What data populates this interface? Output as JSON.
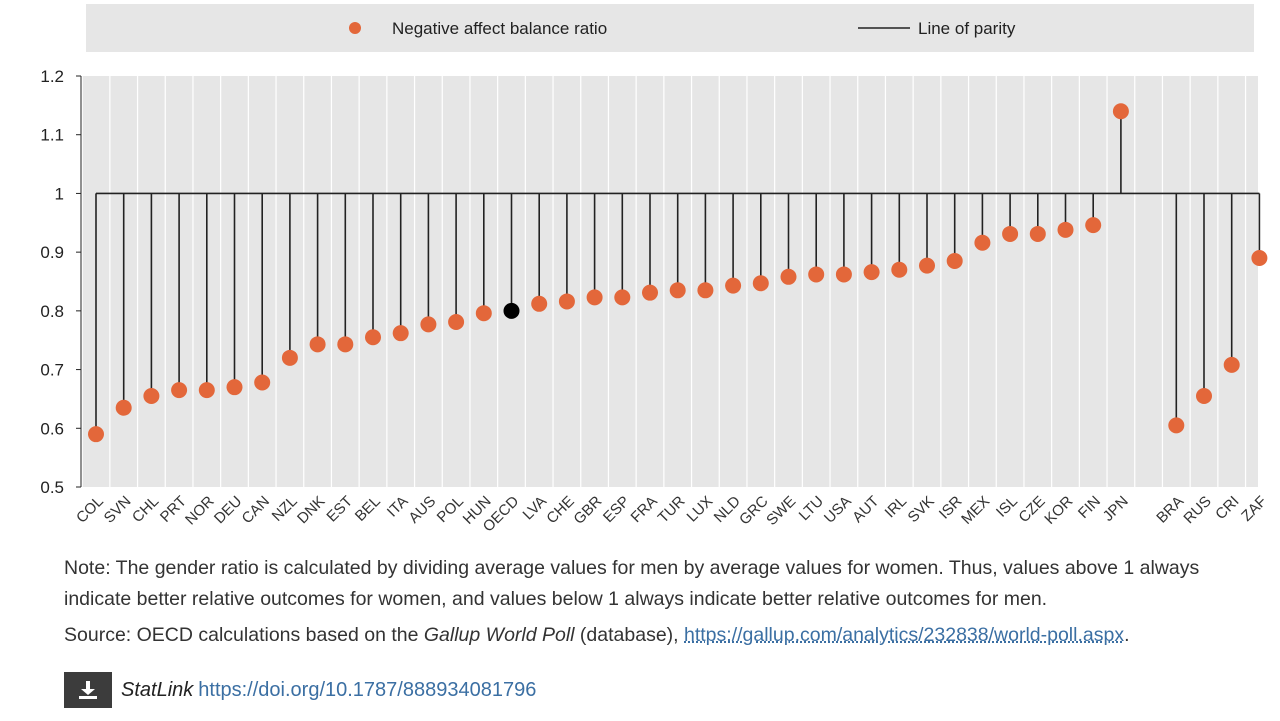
{
  "legend": {
    "series_label": "Negative affect balance ratio",
    "line_label": "Line of parity"
  },
  "colors": {
    "dot": "#e3673a",
    "oecd_dot": "#000000",
    "line": "#222222",
    "plot_bg": "#e6e6e6",
    "legend_bg": "#e6e6e6",
    "link": "#3b6fa3"
  },
  "chart_data": {
    "type": "scatter",
    "title": "",
    "xlabel": "",
    "ylabel": "",
    "ylim": [
      0.5,
      1.2
    ],
    "yticks": [
      0.5,
      0.6,
      0.7,
      0.8,
      0.9,
      1,
      1.1,
      1.2
    ],
    "ytick_labels": [
      "0.5",
      "0.6",
      "0.7",
      "0.8",
      "0.9",
      "1",
      "1.1",
      "1.2"
    ],
    "parity_value": 1,
    "grid": "vertical",
    "legend_position": "top",
    "categories": [
      "COL",
      "SVN",
      "CHL",
      "PRT",
      "NOR",
      "DEU",
      "CAN",
      "NZL",
      "DNK",
      "EST",
      "BEL",
      "ITA",
      "AUS",
      "POL",
      "HUN",
      "OECD",
      "LVA",
      "CHE",
      "GBR",
      "ESP",
      "FRA",
      "TUR",
      "LUX",
      "NLD",
      "GRC",
      "SWE",
      "LTU",
      "USA",
      "AUT",
      "IRL",
      "SVK",
      "ISR",
      "MEX",
      "ISL",
      "CZE",
      "KOR",
      "FIN",
      "JPN",
      "",
      "BRA",
      "RUS",
      "CRI",
      "ZAF"
    ],
    "series": [
      {
        "name": "Negative affect balance ratio",
        "values": [
          0.59,
          0.635,
          0.655,
          0.665,
          0.665,
          0.67,
          0.678,
          0.72,
          0.743,
          0.743,
          0.755,
          0.762,
          0.777,
          0.781,
          0.796,
          0.8,
          0.812,
          0.816,
          0.823,
          0.823,
          0.831,
          0.835,
          0.835,
          0.843,
          0.847,
          0.858,
          0.862,
          0.862,
          0.866,
          0.87,
          0.877,
          0.885,
          0.916,
          0.931,
          0.931,
          0.938,
          0.946,
          1.14,
          null,
          0.605,
          0.655,
          0.708,
          0.89
        ]
      }
    ],
    "highlight": "OECD"
  },
  "note": "Note: The gender ratio is calculated by dividing average values for men by average values for women. Thus, values above 1 always indicate better relative outcomes for women, and values below 1 always indicate better relative outcomes for men.",
  "source": {
    "prefix": "Source: OECD calculations based on the ",
    "italic": "Gallup World Poll",
    "middle": " (database), ",
    "url": "https://gallup.com/analytics/232838/world-poll.aspx",
    "suffix": "."
  },
  "statlink": {
    "label": "StatLink",
    "url": "https://doi.org/10.1787/888934081796",
    "icon": "download-icon"
  }
}
